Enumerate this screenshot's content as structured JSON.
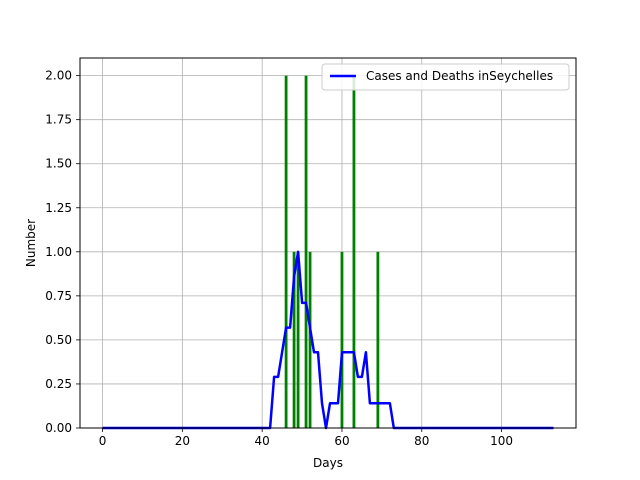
{
  "chart_data": {
    "type": "bar",
    "title": "",
    "xlabel": "Days",
    "ylabel": "Number",
    "xlim": [
      -5.65,
      118.65
    ],
    "ylim": [
      0,
      2.1
    ],
    "xticks": [
      0,
      20,
      40,
      60,
      80,
      100
    ],
    "yticks": [
      0.0,
      0.25,
      0.5,
      0.75,
      1.0,
      1.25,
      1.5,
      1.75,
      2.0
    ],
    "ytick_labels": [
      "0.00",
      "0.25",
      "0.50",
      "0.75",
      "1.00",
      "1.25",
      "1.50",
      "1.75",
      "2.00"
    ],
    "grid": true,
    "legend_position": "top-right",
    "bar_color": "#008000",
    "line_color": "#0000ff",
    "bars": [
      {
        "x": 46,
        "value": 2
      },
      {
        "x": 48,
        "value": 1
      },
      {
        "x": 49,
        "value": 1
      },
      {
        "x": 51,
        "value": 2
      },
      {
        "x": 52,
        "value": 1
      },
      {
        "x": 60,
        "value": 1
      },
      {
        "x": 63,
        "value": 2
      },
      {
        "x": 69,
        "value": 1
      }
    ],
    "series": [
      {
        "name": "Cases and Deaths inSeychelles",
        "points": [
          [
            0,
            0
          ],
          [
            42,
            0
          ],
          [
            43,
            0.29
          ],
          [
            44,
            0.29
          ],
          [
            46,
            0.57
          ],
          [
            47,
            0.57
          ],
          [
            48,
            0.86
          ],
          [
            49,
            1.0
          ],
          [
            50,
            0.71
          ],
          [
            51,
            0.71
          ],
          [
            52,
            0.57
          ],
          [
            53,
            0.43
          ],
          [
            54,
            0.43
          ],
          [
            55,
            0.14
          ],
          [
            56,
            0
          ],
          [
            57,
            0.14
          ],
          [
            59,
            0.14
          ],
          [
            60,
            0.43
          ],
          [
            63,
            0.43
          ],
          [
            64,
            0.29
          ],
          [
            65,
            0.29
          ],
          [
            66,
            0.43
          ],
          [
            67,
            0.14
          ],
          [
            72,
            0.14
          ],
          [
            73,
            0
          ],
          [
            113,
            0
          ]
        ]
      }
    ]
  }
}
